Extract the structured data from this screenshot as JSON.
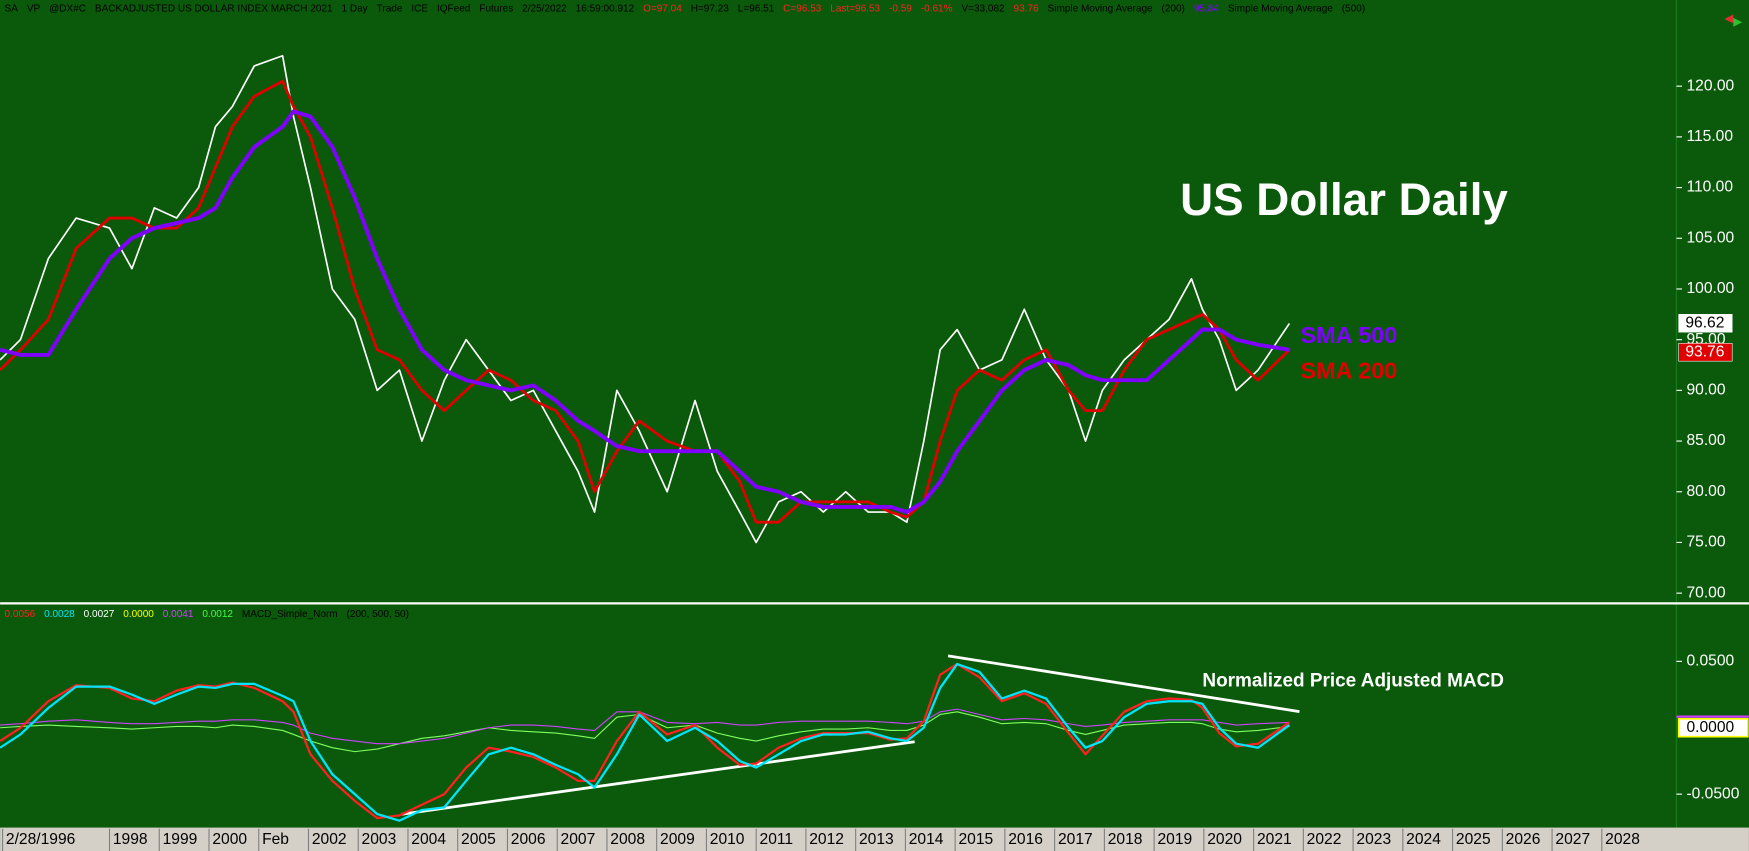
{
  "header": [
    {
      "text": "SA",
      "color": "#000000"
    },
    {
      "text": "VP",
      "color": "#000000"
    },
    {
      "text": "@DX#C",
      "color": "#000000"
    },
    {
      "text": "BACKADJUSTED US DOLLAR INDEX MARCH 2021",
      "color": "#000000"
    },
    {
      "text": "1 Day",
      "color": "#000000"
    },
    {
      "text": "Trade",
      "color": "#000000"
    },
    {
      "text": "ICE",
      "color": "#000000"
    },
    {
      "text": "IQFeed",
      "color": "#000000"
    },
    {
      "text": "Futures",
      "color": "#000000"
    },
    {
      "text": "2/25/2022",
      "color": "#000000"
    },
    {
      "text": "16:59:00.912",
      "color": "#000000"
    },
    {
      "text": "O=97.04",
      "color": "#ff2020"
    },
    {
      "text": "H=97.23",
      "color": "#000000"
    },
    {
      "text": "L=96.51",
      "color": "#000000"
    },
    {
      "text": "C=96.53",
      "color": "#ff2020"
    },
    {
      "text": "Last=96.53",
      "color": "#ff2020"
    },
    {
      "text": "-0.59",
      "color": "#ff2020"
    },
    {
      "text": "-0.61%",
      "color": "#ff2020"
    },
    {
      "text": "V=33,082",
      "color": "#000000"
    },
    {
      "text": "93.76",
      "color": "#ff2020"
    },
    {
      "text": "Simple Moving Average",
      "color": "#000000"
    },
    {
      "text": "(200)",
      "color": "#000000"
    },
    {
      "text": "95.84",
      "color": "#8000ff"
    },
    {
      "text": "Simple Moving Average",
      "color": "#000000"
    },
    {
      "text": "(500)",
      "color": "#000000"
    }
  ],
  "macd_header": [
    {
      "text": "0.0056",
      "color": "#ff2020"
    },
    {
      "text": "0.0028",
      "color": "#00e5ff"
    },
    {
      "text": "0.0027",
      "color": "#ffffff"
    },
    {
      "text": "0.0000",
      "color": "#ffff00"
    },
    {
      "text": "0.0041",
      "color": "#d040ff"
    },
    {
      "text": "0.0012",
      "color": "#40ff40"
    },
    {
      "text": "MACD_Simple_Norm",
      "color": "#000000"
    },
    {
      "text": "(200, 500, 50)",
      "color": "#000000"
    }
  ],
  "chart_data": [
    {
      "type": "line",
      "annotations": [
        {
          "text": "US Dollar Daily",
          "color": "#ffffff"
        }
      ],
      "x": [
        1995.8,
        1996.21,
        1996.77,
        1997.33,
        1998.0,
        1998.45,
        1998.9,
        1999.35,
        1999.79,
        2000.13,
        2000.47,
        2000.91,
        2001.48,
        2001.7,
        2002.04,
        2002.48,
        2002.93,
        2003.38,
        2003.83,
        2004.28,
        2004.73,
        2005.17,
        2005.62,
        2006.07,
        2006.52,
        2006.97,
        2007.42,
        2007.75,
        2008.2,
        2008.65,
        2009.21,
        2009.77,
        2010.22,
        2010.67,
        2011.0,
        2011.45,
        2011.9,
        2012.35,
        2012.8,
        2013.25,
        2013.7,
        2014.03,
        2014.37,
        2014.7,
        2015.04,
        2015.49,
        2015.94,
        2016.39,
        2016.83,
        2017.28,
        2017.62,
        2017.96,
        2018.4,
        2018.85,
        2019.3,
        2019.75,
        2019.97,
        2020.31,
        2020.65,
        2021.09,
        2021.72
      ],
      "series": [
        {
          "color": "#ffffff",
          "values": [
            93,
            95,
            103,
            107,
            106,
            102,
            108,
            107,
            110,
            116,
            118,
            122,
            123,
            117,
            110,
            100,
            97,
            90,
            92,
            85,
            91,
            95,
            92,
            89,
            90,
            86,
            82,
            78,
            90,
            86,
            80,
            89,
            82,
            78,
            75,
            79,
            80,
            78,
            80,
            78,
            78,
            77,
            85,
            94,
            96,
            92,
            93,
            98,
            93,
            90,
            85,
            90,
            93,
            95,
            97,
            101,
            98,
            95,
            90,
            92,
            96.6
          ]
        },
        {
          "name": "SMA 200",
          "color": "#e00000",
          "values": [
            92,
            94,
            97,
            104,
            107,
            107,
            106,
            106,
            108,
            112,
            116,
            119,
            120.5,
            118,
            115,
            108,
            100,
            94,
            93,
            90,
            88,
            90,
            92,
            91,
            89,
            88,
            85,
            80,
            84,
            87,
            85,
            84,
            84,
            81,
            77,
            77,
            79,
            79,
            79,
            79,
            78,
            77.5,
            79,
            85,
            90,
            92,
            91,
            93,
            94,
            90,
            88,
            88,
            92,
            95,
            96,
            97,
            97.5,
            96,
            93,
            91,
            94
          ]
        },
        {
          "name": "SMA 500",
          "color": "#8000ff",
          "values": [
            94,
            93.5,
            93.5,
            98,
            103,
            105,
            106,
            106.5,
            107,
            108,
            111,
            114,
            116,
            117.5,
            117,
            114,
            109,
            103,
            98,
            94,
            92,
            91,
            90.5,
            90,
            90.5,
            89,
            87,
            86,
            84.5,
            84,
            84,
            84,
            84,
            82,
            80.5,
            80,
            79,
            78.5,
            78.5,
            78.5,
            78.5,
            78,
            79,
            81,
            84,
            87,
            90,
            92,
            93,
            92.5,
            91.5,
            91,
            91,
            91,
            93,
            95,
            96,
            96,
            95,
            94.5,
            94
          ]
        }
      ],
      "price_markers": [
        {
          "value": 96.62,
          "color": "#ffffff",
          "text_color": "#000000"
        },
        {
          "value": 93.76,
          "color": "#e00000",
          "text_color": "#ffffff"
        }
      ],
      "xlim": [
        1995.8,
        2029.5
      ],
      "ylim": [
        69.1,
        128.5
      ],
      "yticks": [
        {
          "value": 70,
          "label": "70.00"
        },
        {
          "value": 75,
          "label": "75.00"
        },
        {
          "value": 80,
          "label": "80.00"
        },
        {
          "value": 85,
          "label": "85.00"
        },
        {
          "value": 90,
          "label": "90.00"
        },
        {
          "value": 95,
          "label": "95.00"
        },
        {
          "value": 100,
          "label": "100.00"
        },
        {
          "value": 105,
          "label": "105.00"
        },
        {
          "value": 110,
          "label": "110.00"
        },
        {
          "value": 115,
          "label": "115.00"
        },
        {
          "value": 120,
          "label": "120.00"
        }
      ]
    },
    {
      "type": "line",
      "annotations": [
        {
          "text": "Normalized Price Adjusted MACD",
          "color": "#ffffff"
        }
      ],
      "x": [
        1995.8,
        1996.21,
        1996.77,
        1997.33,
        1998.0,
        1998.45,
        1998.9,
        1999.35,
        1999.79,
        2000.13,
        2000.47,
        2000.91,
        2001.48,
        2001.7,
        2002.04,
        2002.48,
        2002.93,
        2003.38,
        2003.83,
        2004.28,
        2004.73,
        2005.17,
        2005.62,
        2006.07,
        2006.52,
        2006.97,
        2007.42,
        2007.75,
        2008.2,
        2008.65,
        2009.21,
        2009.77,
        2010.22,
        2010.67,
        2011.0,
        2011.45,
        2011.9,
        2012.35,
        2012.8,
        2013.25,
        2013.7,
        2014.03,
        2014.37,
        2014.7,
        2015.04,
        2015.49,
        2015.94,
        2016.39,
        2016.83,
        2017.28,
        2017.62,
        2017.96,
        2018.4,
        2018.85,
        2019.3,
        2019.75,
        2019.97,
        2020.31,
        2020.65,
        2021.09,
        2021.72
      ],
      "series": [
        {
          "color": "#7fff5f",
          "values": [
            0.0,
            0.001,
            0.002,
            0.001,
            0.0,
            -0.001,
            0.0,
            0.001,
            0.001,
            0.0,
            0.002,
            0.001,
            -0.002,
            -0.005,
            -0.01,
            -0.015,
            -0.018,
            -0.016,
            -0.012,
            -0.008,
            -0.006,
            -0.003,
            0.0,
            -0.002,
            -0.003,
            -0.004,
            -0.006,
            -0.008,
            0.008,
            0.01,
            0.0,
            0.002,
            -0.004,
            -0.008,
            -0.01,
            -0.006,
            -0.003,
            -0.001,
            -0.001,
            0.0,
            -0.002,
            -0.002,
            0.002,
            0.01,
            0.012,
            0.008,
            0.003,
            0.004,
            0.003,
            -0.002,
            -0.005,
            -0.002,
            0.002,
            0.003,
            0.004,
            0.004,
            0.003,
            -0.001,
            -0.003,
            -0.002,
            0.001
          ]
        },
        {
          "color": "#d040ff",
          "values": [
            0.002,
            0.003,
            0.005,
            0.006,
            0.004,
            0.003,
            0.003,
            0.004,
            0.005,
            0.005,
            0.006,
            0.006,
            0.004,
            0.002,
            -0.004,
            -0.008,
            -0.01,
            -0.012,
            -0.012,
            -0.01,
            -0.008,
            -0.004,
            0.0,
            0.002,
            0.002,
            0.001,
            -0.001,
            -0.002,
            0.012,
            0.012,
            0.004,
            0.003,
            0.004,
            0.002,
            0.002,
            0.004,
            0.005,
            0.005,
            0.005,
            0.005,
            0.004,
            0.003,
            0.005,
            0.012,
            0.014,
            0.01,
            0.006,
            0.007,
            0.006,
            0.003,
            0.001,
            0.002,
            0.004,
            0.005,
            0.006,
            0.006,
            0.006,
            0.004,
            0.002,
            0.003,
            0.004
          ]
        },
        {
          "color": "#ff2020",
          "values": [
            -0.01,
            0,
            0.02,
            0.032,
            0.03,
            0.022,
            0.02,
            0.028,
            0.032,
            0.031,
            0.034,
            0.03,
            0.02,
            0.012,
            -0.02,
            -0.04,
            -0.055,
            -0.068,
            -0.066,
            -0.058,
            -0.05,
            -0.03,
            -0.015,
            -0.018,
            -0.022,
            -0.03,
            -0.04,
            -0.04,
            -0.01,
            0.012,
            -0.005,
            0.002,
            -0.015,
            -0.028,
            -0.027,
            -0.015,
            -0.008,
            -0.004,
            -0.004,
            -0.004,
            -0.009,
            -0.008,
            0.005,
            0.04,
            0.048,
            0.038,
            0.02,
            0.026,
            0.018,
            -0.004,
            -0.02,
            -0.006,
            0.012,
            0.02,
            0.022,
            0.021,
            0.015,
            -0.004,
            -0.014,
            -0.012,
            0.004
          ]
        },
        {
          "color": "#00e5ff",
          "values": [
            -0.015,
            -0.005,
            0.015,
            0.031,
            0.031,
            0.025,
            0.018,
            0.025,
            0.031,
            0.03,
            0.033,
            0.033,
            0.024,
            0.02,
            -0.01,
            -0.035,
            -0.05,
            -0.065,
            -0.07,
            -0.062,
            -0.06,
            -0.04,
            -0.02,
            -0.015,
            -0.02,
            -0.028,
            -0.035,
            -0.045,
            -0.02,
            0.01,
            -0.01,
            0,
            -0.01,
            -0.025,
            -0.03,
            -0.02,
            -0.01,
            -0.005,
            -0.005,
            -0.003,
            -0.008,
            -0.01,
            0,
            0.03,
            0.048,
            0.042,
            0.022,
            0.028,
            0.022,
            0,
            -0.015,
            -0.01,
            0.008,
            0.018,
            0.02,
            0.02,
            0.018,
            0,
            -0.012,
            -0.015,
            0.002
          ]
        }
      ],
      "zero_marker": {
        "value": 0,
        "label": "0.0000"
      },
      "xlim": [
        1995.8,
        2029.5
      ],
      "ylim": [
        -0.0735,
        0.092
      ],
      "yticks": [
        {
          "value": -0.05,
          "label": "-0.0500"
        },
        {
          "value": 0.05,
          "label": "0.0500"
        }
      ],
      "xticks": [
        {
          "value": 1995.85,
          "label": "2/28/1996"
        },
        1998,
        1999,
        2000,
        {
          "value": 2001.0,
          "label": "Feb"
        },
        2002,
        2003,
        2004,
        2005,
        2006,
        2007,
        2008,
        2009,
        2010,
        2011,
        2012,
        2013,
        2014,
        2015,
        2016,
        2017,
        2018,
        2019,
        2020,
        2021,
        2022,
        2023,
        2024,
        2025,
        2026,
        2027,
        2028
      ]
    }
  ]
}
